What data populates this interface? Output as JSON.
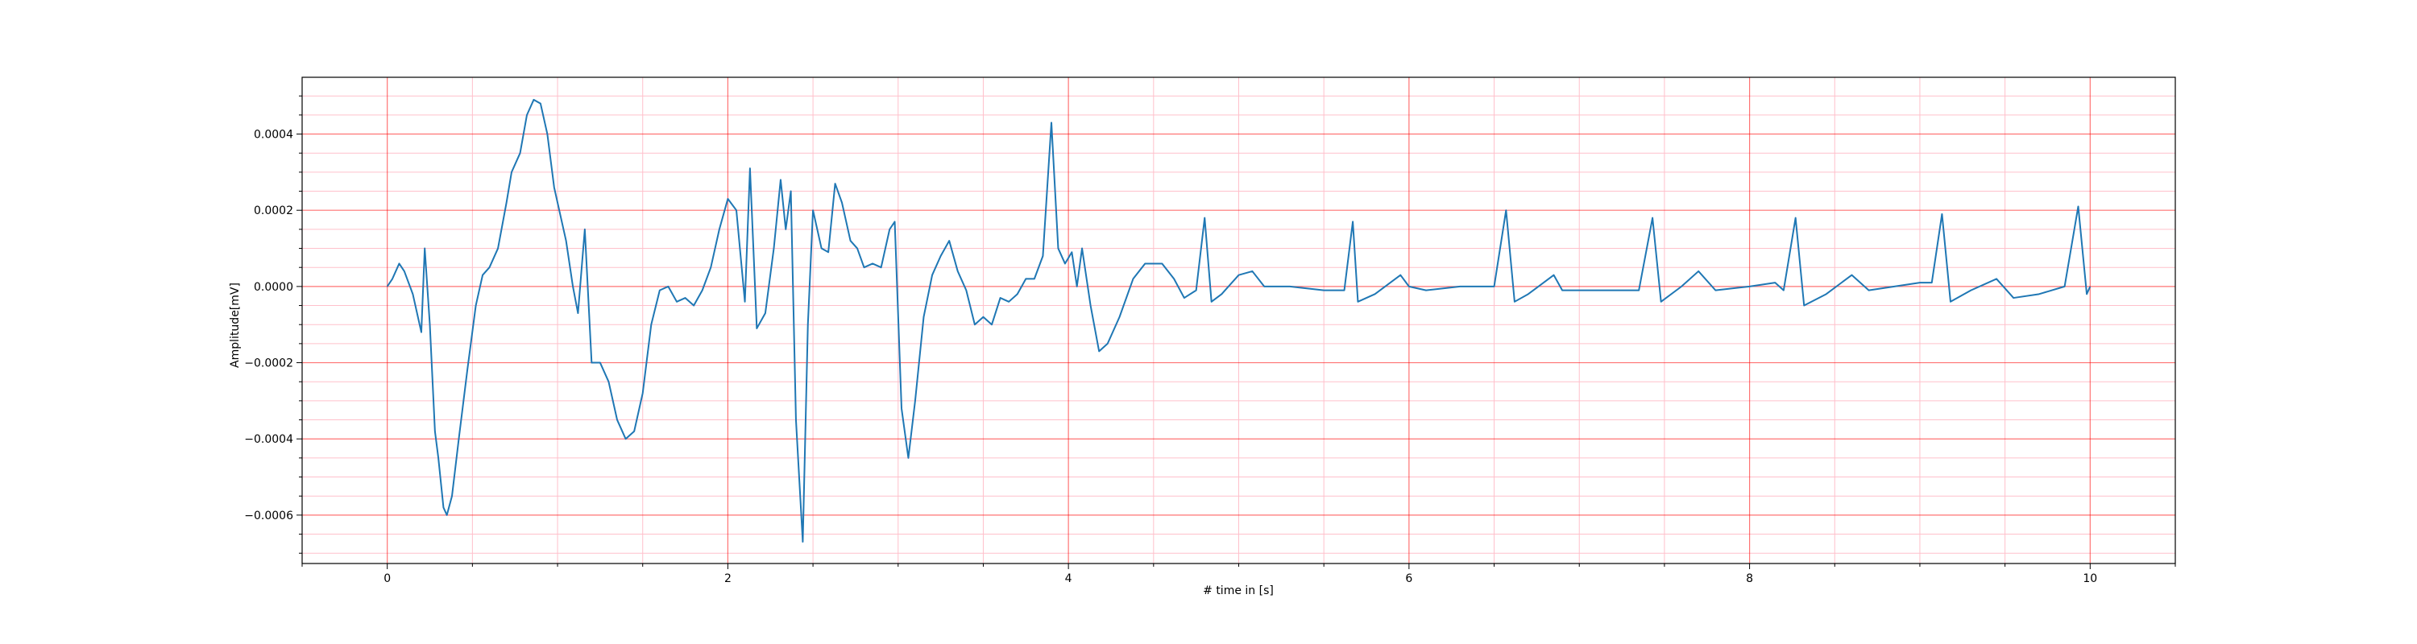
{
  "chart_data": {
    "type": "line",
    "xlabel": "# time in [s]",
    "ylabel": "Amplitude[mV]",
    "xlim": [
      -0.5,
      10.5
    ],
    "ylim": [
      -0.000727,
      0.000549
    ],
    "xticks": [
      0,
      2,
      4,
      6,
      8,
      10
    ],
    "yticks": [
      {
        "value": -0.0006,
        "label": "−0.0006"
      },
      {
        "value": -0.0004,
        "label": "−0.0004"
      },
      {
        "value": -0.0002,
        "label": "−0.0002"
      },
      {
        "value": 0,
        "label": "0.0000"
      },
      {
        "value": 0.0002,
        "label": "0.0002"
      },
      {
        "value": 0.0004,
        "label": "0.0004"
      }
    ],
    "xminorticks": [
      -0.5,
      0.5,
      1,
      1.5,
      2.5,
      3,
      3.5,
      4.5,
      5,
      5.5,
      6.5,
      7,
      7.5,
      8.5,
      9,
      9.5,
      10.5
    ],
    "yminorticks": [
      -0.0007,
      -0.00065,
      -0.00055,
      -0.0005,
      -0.00045,
      -0.00035,
      -0.0003,
      -0.00025,
      -0.00015,
      -0.0001,
      -5e-05,
      5e-05,
      0.0001,
      0.00015,
      0.00025,
      0.0003,
      0.00035,
      0.00045,
      0.0005
    ],
    "grid": true,
    "grid_color": "#ff0000",
    "minor_grid_color": "#ffc0cb",
    "x": [
      0,
      0.03,
      0.07,
      0.1,
      0.15,
      0.2,
      0.22,
      0.25,
      0.28,
      0.3,
      0.33,
      0.35,
      0.38,
      0.42,
      0.47,
      0.52,
      0.56,
      0.6,
      0.65,
      0.7,
      0.73,
      0.78,
      0.82,
      0.86,
      0.9,
      0.94,
      0.98,
      1.05,
      1.09,
      1.12,
      1.16,
      1.2,
      1.25,
      1.3,
      1.35,
      1.4,
      1.45,
      1.5,
      1.55,
      1.6,
      1.65,
      1.7,
      1.75,
      1.8,
      1.85,
      1.9,
      1.95,
      2.0,
      2.05,
      2.1,
      2.13,
      2.17,
      2.22,
      2.27,
      2.31,
      2.34,
      2.37,
      2.4,
      2.44,
      2.47,
      2.5,
      2.55,
      2.59,
      2.63,
      2.67,
      2.72,
      2.76,
      2.8,
      2.85,
      2.9,
      2.95,
      2.98,
      3.02,
      3.06,
      3.1,
      3.15,
      3.2,
      3.25,
      3.3,
      3.35,
      3.4,
      3.45,
      3.5,
      3.55,
      3.6,
      3.65,
      3.7,
      3.75,
      3.8,
      3.85,
      3.9,
      3.94,
      3.98,
      4.02,
      4.05,
      4.08,
      4.13,
      4.18,
      4.23,
      4.3,
      4.38,
      4.45,
      4.55,
      4.62,
      4.68,
      4.75,
      4.8,
      4.84,
      4.9,
      5.0,
      5.08,
      5.15,
      5.3,
      5.5,
      5.62,
      5.67,
      5.7,
      5.8,
      5.95,
      6.0,
      6.1,
      6.3,
      6.5,
      6.57,
      6.62,
      6.7,
      6.85,
      6.9,
      7.2,
      7.35,
      7.43,
      7.48,
      7.6,
      7.7,
      7.8,
      8.0,
      8.15,
      8.2,
      8.27,
      8.32,
      8.45,
      8.6,
      8.7,
      9.0,
      9.07,
      9.13,
      9.18,
      9.3,
      9.45,
      9.55,
      9.7,
      9.85,
      9.93,
      9.98,
      10.0
    ],
    "series": [
      {
        "color": "#1f77b4",
        "values": [
          0,
          2e-05,
          6e-05,
          4e-05,
          -2e-05,
          -0.00012,
          0.0001,
          -0.0001,
          -0.00038,
          -0.00045,
          -0.00058,
          -0.0006,
          -0.00055,
          -0.0004,
          -0.00022,
          -5e-05,
          3e-05,
          5e-05,
          0.0001,
          0.00022,
          0.0003,
          0.00035,
          0.00045,
          0.00049,
          0.00048,
          0.0004,
          0.00026,
          0.00012,
          0,
          -7e-05,
          0.00015,
          -0.0002,
          -0.0002,
          -0.00025,
          -0.00035,
          -0.0004,
          -0.00038,
          -0.00028,
          -0.0001,
          -1e-05,
          0,
          -4e-05,
          -3e-05,
          -5e-05,
          -1e-05,
          5e-05,
          0.00015,
          0.00023,
          0.0002,
          -4e-05,
          0.00031,
          -0.00011,
          -7e-05,
          0.0001,
          0.00028,
          0.00015,
          0.00025,
          -0.00035,
          -0.00067,
          -0.0001,
          0.0002,
          0.0001,
          9e-05,
          0.00027,
          0.00022,
          0.00012,
          0.0001,
          5e-05,
          6e-05,
          5e-05,
          0.00015,
          0.00017,
          -0.00032,
          -0.00045,
          -0.0003,
          -8e-05,
          3e-05,
          8e-05,
          0.00012,
          4e-05,
          -1e-05,
          -0.0001,
          -8e-05,
          -0.0001,
          -3e-05,
          -4e-05,
          -2e-05,
          2e-05,
          2e-05,
          8e-05,
          0.00043,
          0.0001,
          6e-05,
          9e-05,
          0,
          0.0001,
          -5e-05,
          -0.00017,
          -0.00015,
          -8e-05,
          2e-05,
          6e-05,
          6e-05,
          2e-05,
          -3e-05,
          -1e-05,
          0.00018,
          -4e-05,
          -2e-05,
          3e-05,
          4e-05,
          0,
          0,
          -1e-05,
          -1e-05,
          0.00017,
          -4e-05,
          -2e-05,
          3e-05,
          0,
          -1e-05,
          0,
          0,
          0.0002,
          -4e-05,
          -2e-05,
          3e-05,
          -1e-05,
          -1e-05,
          -1e-05,
          0.00018,
          -4e-05,
          0,
          4e-05,
          -1e-05,
          0,
          1e-05,
          -1e-05,
          0.00018,
          -5e-05,
          -2e-05,
          3e-05,
          -1e-05,
          1e-05,
          1e-05,
          0.00019,
          -4e-05,
          -1e-05,
          2e-05,
          -3e-05,
          -2e-05,
          0,
          0.00021,
          -2e-05,
          0
        ]
      }
    ]
  }
}
